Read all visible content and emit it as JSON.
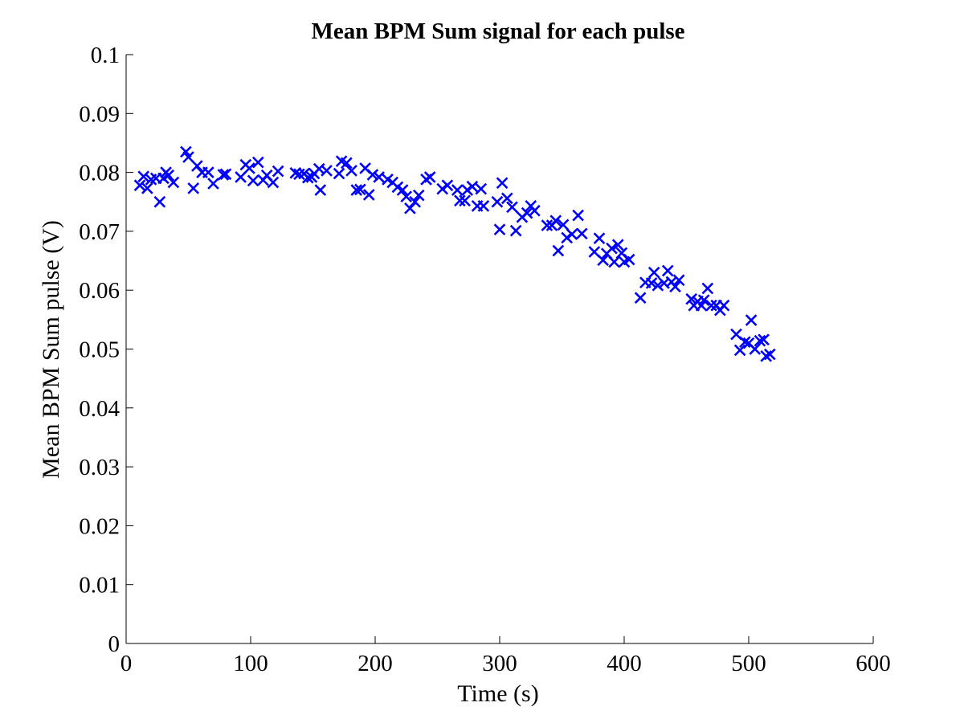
{
  "chart_data": {
    "type": "scatter",
    "title": "Mean BPM Sum signal for each pulse",
    "xlabel": "Time (s)",
    "ylabel": "Mean BPM Sum pulse (V)",
    "xlim": [
      0,
      600
    ],
    "ylim": [
      0,
      0.1
    ],
    "x_ticks": [
      "0",
      "100",
      "200",
      "300",
      "400",
      "500",
      "600"
    ],
    "y_ticks": [
      "0",
      "0.01",
      "0.02",
      "0.03",
      "0.04",
      "0.05",
      "0.06",
      "0.07",
      "0.08",
      "0.09",
      "0.1"
    ],
    "grid": false,
    "marker": "x",
    "color": "#0000ff",
    "series": [
      {
        "points": [
          [
            11,
            0.0778
          ],
          [
            14,
            0.0793
          ],
          [
            17,
            0.0773
          ],
          [
            20,
            0.0788
          ],
          [
            24,
            0.079
          ],
          [
            27,
            0.075
          ],
          [
            30,
            0.079
          ],
          [
            32,
            0.08
          ],
          [
            34,
            0.0795
          ],
          [
            38,
            0.0783
          ],
          [
            48,
            0.0835
          ],
          [
            50,
            0.0826
          ],
          [
            54,
            0.0773
          ],
          [
            57,
            0.0811
          ],
          [
            61,
            0.08
          ],
          [
            66,
            0.08
          ],
          [
            70,
            0.0781
          ],
          [
            78,
            0.0796
          ],
          [
            80,
            0.0797
          ],
          [
            92,
            0.0792
          ],
          [
            96,
            0.0813
          ],
          [
            99,
            0.0807
          ],
          [
            102,
            0.0786
          ],
          [
            106,
            0.0817
          ],
          [
            110,
            0.0787
          ],
          [
            113,
            0.0795
          ],
          [
            118,
            0.0783
          ],
          [
            122,
            0.0802
          ],
          [
            136,
            0.0799
          ],
          [
            139,
            0.0797
          ],
          [
            143,
            0.0798
          ],
          [
            146,
            0.0791
          ],
          [
            149,
            0.0792
          ],
          [
            151,
            0.0798
          ],
          [
            155,
            0.0806
          ],
          [
            156,
            0.077
          ],
          [
            161,
            0.0803
          ],
          [
            171,
            0.0798
          ],
          [
            173,
            0.0819
          ],
          [
            177,
            0.0816
          ],
          [
            181,
            0.0803
          ],
          [
            185,
            0.077
          ],
          [
            188,
            0.0771
          ],
          [
            192,
            0.0807
          ],
          [
            195,
            0.0762
          ],
          [
            198,
            0.0796
          ],
          [
            203,
            0.0792
          ],
          [
            210,
            0.0788
          ],
          [
            214,
            0.0783
          ],
          [
            218,
            0.0775
          ],
          [
            222,
            0.077
          ],
          [
            225,
            0.0759
          ],
          [
            228,
            0.0739
          ],
          [
            232,
            0.075
          ],
          [
            235,
            0.0761
          ],
          [
            241,
            0.0788
          ],
          [
            244,
            0.0792
          ],
          [
            254,
            0.0772
          ],
          [
            258,
            0.0778
          ],
          [
            266,
            0.077
          ],
          [
            268,
            0.0752
          ],
          [
            272,
            0.0752
          ],
          [
            274,
            0.077
          ],
          [
            278,
            0.0776
          ],
          [
            282,
            0.0743
          ],
          [
            285,
            0.0772
          ],
          [
            287,
            0.0743
          ],
          [
            298,
            0.075
          ],
          [
            300,
            0.0703
          ],
          [
            302,
            0.0782
          ],
          [
            306,
            0.0756
          ],
          [
            310,
            0.0741
          ],
          [
            313,
            0.0701
          ],
          [
            318,
            0.0724
          ],
          [
            322,
            0.0731
          ],
          [
            325,
            0.0743
          ],
          [
            328,
            0.0735
          ],
          [
            338,
            0.071
          ],
          [
            342,
            0.071
          ],
          [
            345,
            0.0718
          ],
          [
            347,
            0.0667
          ],
          [
            351,
            0.0711
          ],
          [
            354,
            0.0689
          ],
          [
            358,
            0.0695
          ],
          [
            363,
            0.0727
          ],
          [
            366,
            0.0696
          ],
          [
            376,
            0.0665
          ],
          [
            380,
            0.0688
          ],
          [
            383,
            0.0651
          ],
          [
            386,
            0.0662
          ],
          [
            390,
            0.0671
          ],
          [
            392,
            0.0648
          ],
          [
            395,
            0.0677
          ],
          [
            398,
            0.0663
          ],
          [
            400,
            0.0648
          ],
          [
            404,
            0.0652
          ],
          [
            413,
            0.0587
          ],
          [
            417,
            0.0613
          ],
          [
            422,
            0.0612
          ],
          [
            424,
            0.063
          ],
          [
            427,
            0.0608
          ],
          [
            432,
            0.0612
          ],
          [
            435,
            0.0633
          ],
          [
            438,
            0.0614
          ],
          [
            441,
            0.0606
          ],
          [
            444,
            0.0617
          ],
          [
            454,
            0.0585
          ],
          [
            456,
            0.0574
          ],
          [
            459,
            0.0581
          ],
          [
            462,
            0.0574
          ],
          [
            464,
            0.0583
          ],
          [
            467,
            0.0603
          ],
          [
            470,
            0.0574
          ],
          [
            474,
            0.0574
          ],
          [
            477,
            0.0566
          ],
          [
            480,
            0.0574
          ],
          [
            490,
            0.0525
          ],
          [
            493,
            0.0498
          ],
          [
            497,
            0.0512
          ],
          [
            500,
            0.051
          ],
          [
            502,
            0.0549
          ],
          [
            505,
            0.05
          ],
          [
            509,
            0.0514
          ],
          [
            512,
            0.0516
          ],
          [
            514,
            0.0488
          ],
          [
            517,
            0.0491
          ]
        ]
      }
    ]
  }
}
